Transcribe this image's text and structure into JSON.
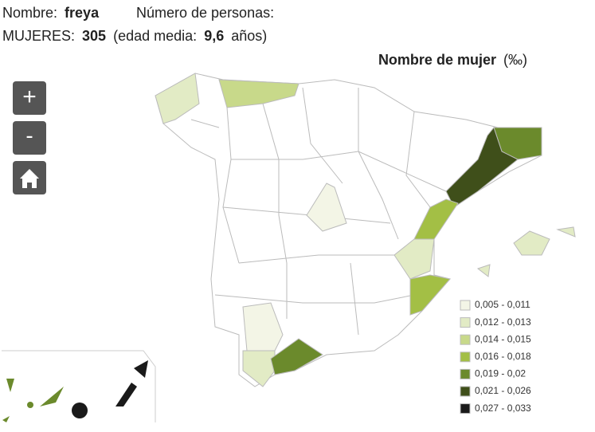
{
  "header": {
    "name_label": "Nombre:",
    "name": "freya",
    "count_label": "Número de personas:",
    "women_label": "MUJERES:",
    "women_count": "305",
    "age_open": "(edad media:",
    "age": "9,6",
    "age_close": "años)"
  },
  "map": {
    "title": "Nombre de mujer",
    "unit": "(‰)"
  },
  "controls": {
    "zoom_in": "+",
    "zoom_out": "-"
  },
  "legend": [
    {
      "label": "0,005 - 0,011",
      "color": "#f3f5e6"
    },
    {
      "label": "0,012 - 0,013",
      "color": "#e2ebc5"
    },
    {
      "label": "0,014 - 0,015",
      "color": "#c8d98a"
    },
    {
      "label": "0,016 - 0,018",
      "color": "#a3bf45"
    },
    {
      "label": "0,019 - 0,02",
      "color": "#6b8a2c"
    },
    {
      "label": "0,021 - 0,026",
      "color": "#3f4f1a"
    },
    {
      "label": "0,027 - 0,033",
      "color": "#1a1a1a"
    }
  ]
}
